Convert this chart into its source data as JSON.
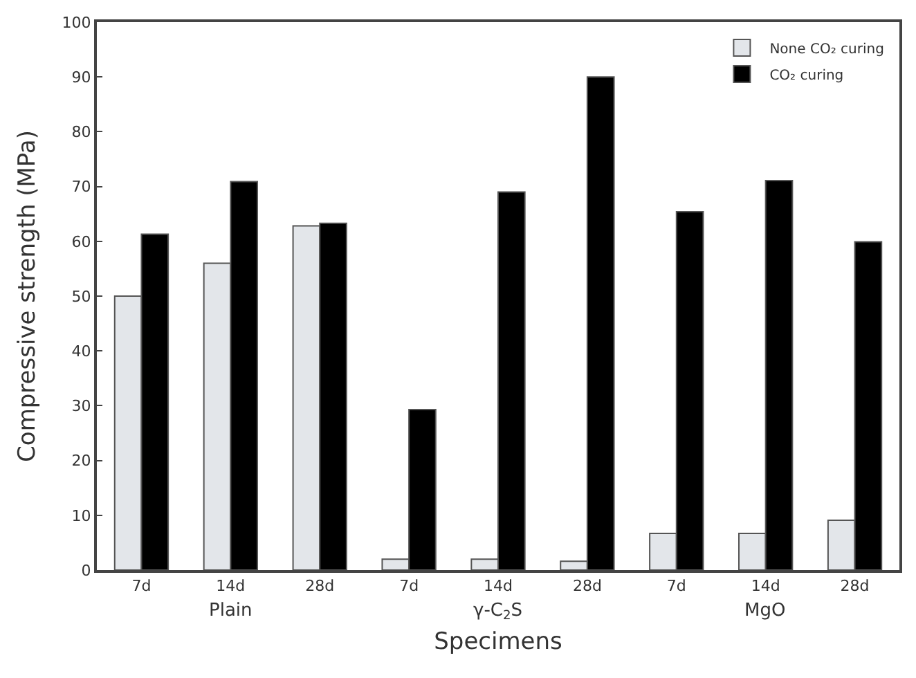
{
  "chart_data": {
    "type": "bar",
    "xlabel": "Specimens",
    "ylabel": "Compressive strength (MPa)",
    "categories": [
      "7d",
      "14d",
      "28d",
      "7d",
      "14d",
      "28d",
      "7d",
      "14d",
      "28d"
    ],
    "annotations": [
      "Plain",
      "γ-C$_{2}$S",
      "MgO"
    ],
    "series": [
      {
        "name": "None CO₂ curing",
        "color": "#e3e6ea",
        "values": [
          50,
          56,
          62.8,
          2,
          2,
          1.6,
          6.7,
          6.7,
          9.1
        ]
      },
      {
        "name": "CO₂ curing",
        "color": "#000000",
        "values": [
          61.3,
          70.9,
          63.3,
          29.3,
          69,
          90,
          65.4,
          71.1,
          59.9
        ]
      }
    ],
    "ylim": [
      0,
      100
    ],
    "yticks": [
      0,
      10,
      20,
      30,
      40,
      50,
      60,
      70,
      80,
      90,
      100
    ],
    "legend": "top right"
  }
}
